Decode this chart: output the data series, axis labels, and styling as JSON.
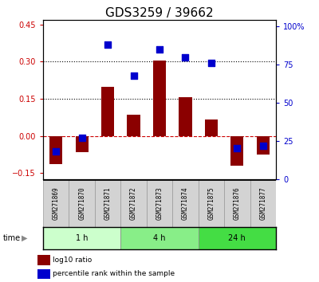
{
  "title": "GDS3259 / 39662",
  "samples": [
    "GSM271869",
    "GSM271870",
    "GSM271871",
    "GSM271872",
    "GSM271873",
    "GSM271874",
    "GSM271875",
    "GSM271876",
    "GSM271877"
  ],
  "log10_ratio": [
    -0.115,
    -0.065,
    0.2,
    0.085,
    0.305,
    0.155,
    0.065,
    -0.12,
    -0.075
  ],
  "percentile_rank": [
    18,
    27,
    88,
    68,
    85,
    80,
    76,
    20,
    22
  ],
  "groups": [
    {
      "label": "1 h",
      "indices": [
        0,
        1,
        2
      ],
      "color": "#ccffcc"
    },
    {
      "label": "4 h",
      "indices": [
        3,
        4,
        5
      ],
      "color": "#88ee88"
    },
    {
      "label": "24 h",
      "indices": [
        6,
        7,
        8
      ],
      "color": "#44dd44"
    }
  ],
  "ylim_left": [
    -0.175,
    0.47
  ],
  "ylim_right": [
    0,
    104.4
  ],
  "yticks_left": [
    -0.15,
    0,
    0.15,
    0.3,
    0.45
  ],
  "yticks_right": [
    0,
    25,
    50,
    75,
    100
  ],
  "hlines": [
    0.15,
    0.3
  ],
  "bar_color": "#8B0000",
  "dot_color": "#0000CD",
  "bar_width": 0.5,
  "dot_size": 35,
  "right_ylabel": "100%",
  "legend_items": [
    {
      "color": "#8B0000",
      "label": "log10 ratio"
    },
    {
      "color": "#0000CD",
      "label": "percentile rank within the sample"
    }
  ],
  "xlabel_time": "time",
  "title_fontsize": 11,
  "tick_fontsize": 7,
  "label_fontsize": 7,
  "bg_color": "#f0f0f0",
  "group_colors": [
    "#ccffcc",
    "#88ee88",
    "#44dd44"
  ]
}
